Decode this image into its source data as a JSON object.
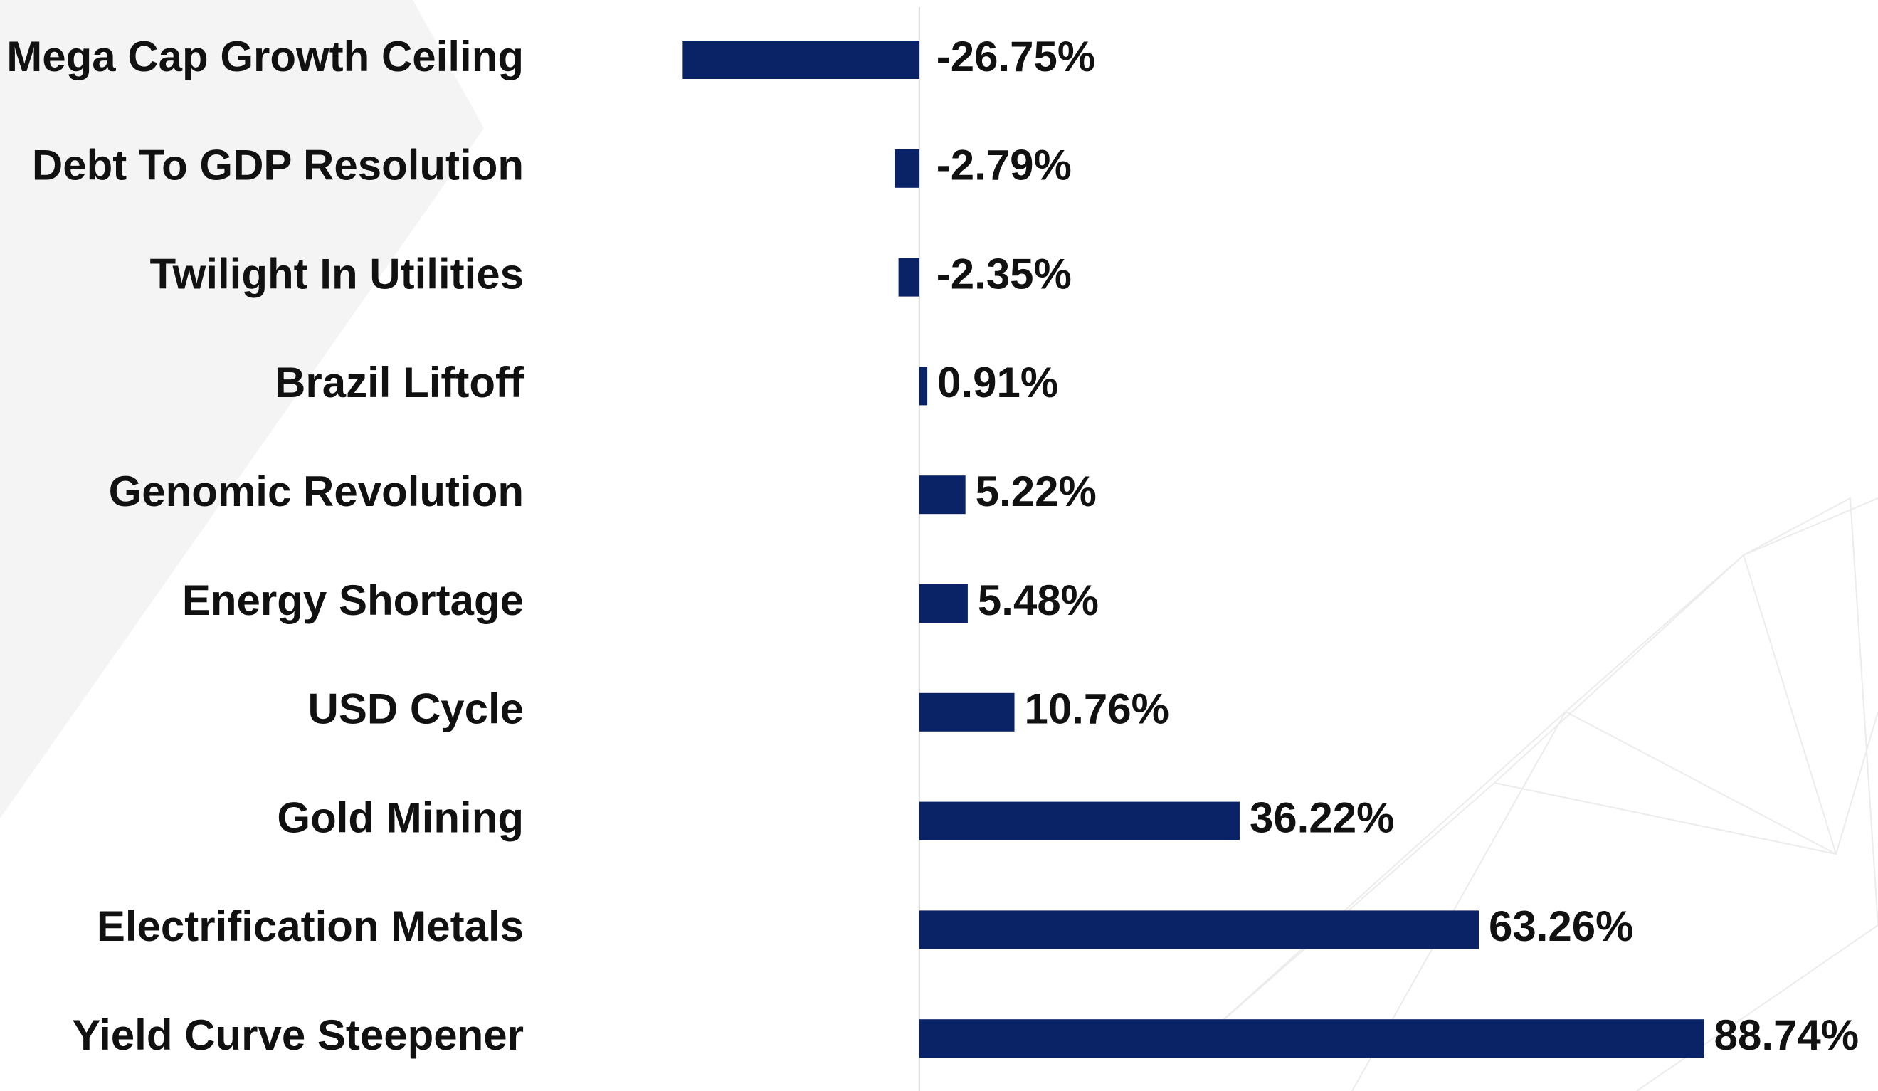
{
  "chart_data": {
    "type": "barh",
    "categories": [
      "Mega Cap Growth Ceiling",
      "Debt To GDP Resolution",
      "Twilight In Utilities",
      "Brazil Liftoff",
      "Genomic Revolution",
      "Energy Shortage",
      "USD Cycle",
      "Gold Mining",
      "Electrification Metals",
      "Yield Curve Steepener"
    ],
    "values": [
      -26.75,
      -2.79,
      -2.35,
      0.91,
      5.22,
      5.48,
      10.76,
      36.22,
      63.26,
      88.74
    ],
    "value_labels": [
      "-26.75%",
      "-2.79%",
      "-2.35%",
      "0.91%",
      "5.22%",
      "5.48%",
      "10.76%",
      "36.22%",
      "63.26%",
      "88.74%"
    ],
    "color": "#0a2266",
    "xlim": [
      -44.4,
      108.4
    ]
  }
}
